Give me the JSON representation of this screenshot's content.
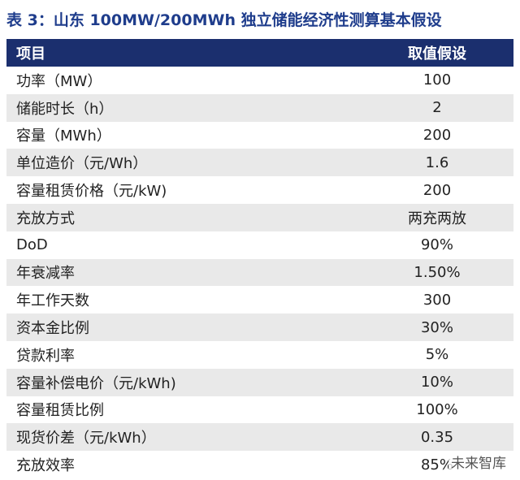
{
  "header": {
    "title": "表 3：山东 100MW/200MWh 独立储能经济性测算基本假设"
  },
  "table": {
    "columns": [
      "项目",
      "取值假设"
    ],
    "rows": [
      [
        "功率（MW）",
        "100"
      ],
      [
        "储能时长（h）",
        "2"
      ],
      [
        "容量（MWh）",
        "200"
      ],
      [
        "单位造价（元/Wh）",
        "1.6"
      ],
      [
        "容量租赁价格（元/kW)",
        "200"
      ],
      [
        "充放方式",
        "两充两放"
      ],
      [
        "DoD",
        "90%"
      ],
      [
        "年衰减率",
        "1.50%"
      ],
      [
        "年工作天数",
        "300"
      ],
      [
        "资本金比例",
        "30%"
      ],
      [
        "贷款利率",
        "5%"
      ],
      [
        "容量补偿电价（元/kWh)",
        "10%"
      ],
      [
        "容量租赁比例",
        "100%"
      ],
      [
        "现货价差（元/kWh）",
        "0.35"
      ],
      [
        "充放效率",
        "85%"
      ]
    ]
  },
  "watermark": "未来智库"
}
